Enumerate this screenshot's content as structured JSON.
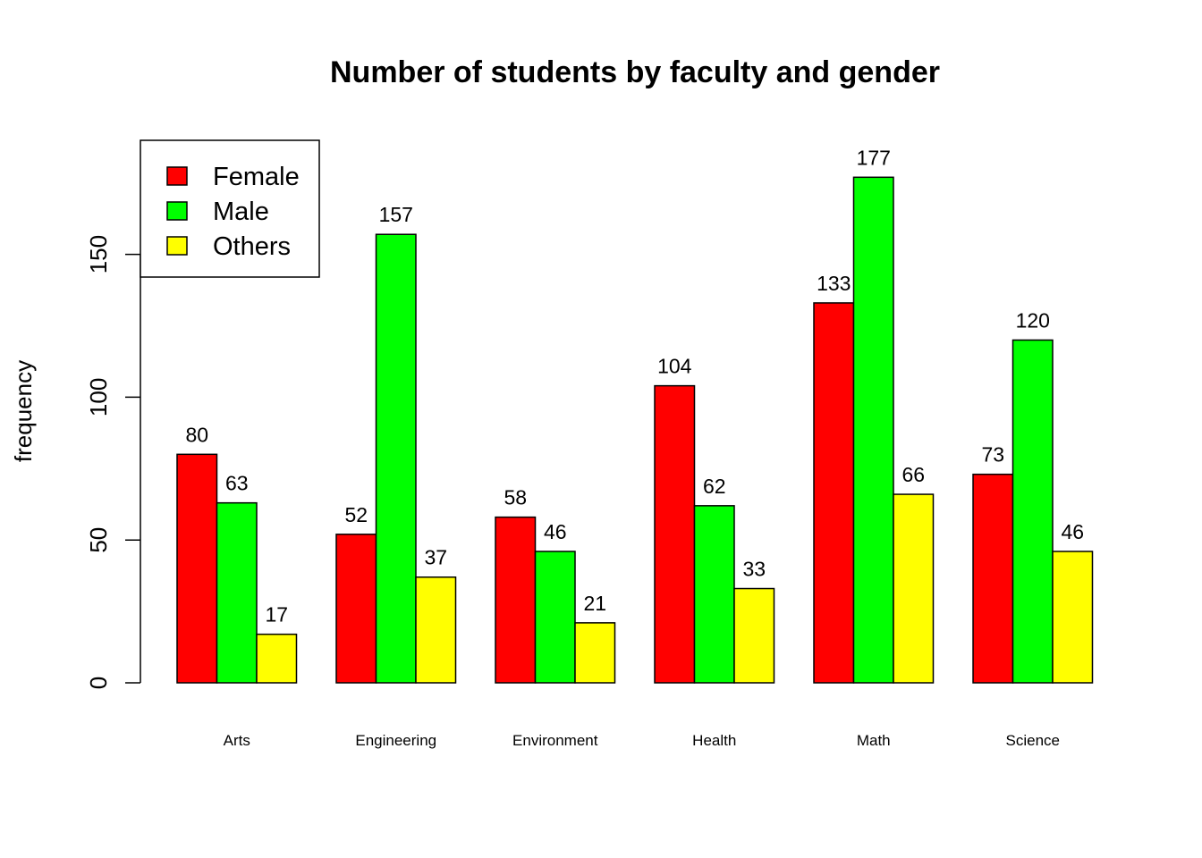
{
  "chart_data": {
    "type": "bar",
    "title": "Number of students by faculty and gender",
    "xlabel": "",
    "ylabel": "frequency",
    "ylim": [
      0,
      177
    ],
    "yticks": [
      0,
      50,
      100,
      150
    ],
    "categories": [
      "Arts",
      "Engineering",
      "Environment",
      "Health",
      "Math",
      "Science"
    ],
    "series": [
      {
        "name": "Female",
        "color": "#ff0000",
        "values": [
          80,
          52,
          58,
          104,
          133,
          73
        ]
      },
      {
        "name": "Male",
        "color": "#00ff00",
        "values": [
          63,
          157,
          46,
          62,
          177,
          120
        ]
      },
      {
        "name": "Others",
        "color": "#ffff00",
        "values": [
          17,
          37,
          21,
          33,
          66,
          46
        ]
      }
    ],
    "legend_position": "top-left",
    "grid": false,
    "data_labels": true
  }
}
